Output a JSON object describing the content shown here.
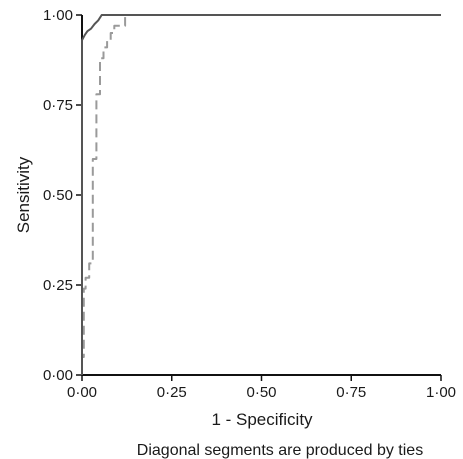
{
  "chart_data": {
    "type": "line",
    "title": "",
    "xlabel": "1 - Specificity",
    "ylabel": "Sensitivity",
    "xlim": [
      0,
      1
    ],
    "ylim": [
      0,
      1
    ],
    "x_ticks": [
      "0·00",
      "0·25",
      "0·50",
      "0·75",
      "1·00"
    ],
    "y_ticks": [
      "0·00",
      "0·25",
      "0·50",
      "0·75",
      "1·00"
    ],
    "grid": false,
    "legend": "none",
    "footnote": "Diagonal segments are produced by ties",
    "series": [
      {
        "style": "solid",
        "color": "#555555",
        "x": [
          0.0,
          0.0,
          0.008,
          0.015,
          0.025,
          0.035,
          0.045,
          0.055,
          0.07,
          1.0
        ],
        "y": [
          0.0,
          0.93,
          0.945,
          0.955,
          0.962,
          0.975,
          0.985,
          1.0,
          1.0,
          1.0
        ]
      },
      {
        "style": "dashed",
        "color": "#9a9a9a",
        "x": [
          0.0,
          0.0,
          0.005,
          0.005,
          0.01,
          0.01,
          0.02,
          0.02,
          0.03,
          0.03,
          0.04,
          0.04,
          0.05,
          0.05,
          0.06,
          0.06,
          0.07,
          0.07,
          0.08,
          0.08,
          0.09,
          0.09,
          0.12,
          0.12,
          1.0
        ],
        "y": [
          0.0,
          0.05,
          0.05,
          0.24,
          0.24,
          0.27,
          0.27,
          0.31,
          0.31,
          0.6,
          0.6,
          0.78,
          0.78,
          0.88,
          0.88,
          0.91,
          0.91,
          0.93,
          0.93,
          0.95,
          0.95,
          0.97,
          0.97,
          1.0,
          1.0
        ]
      }
    ]
  }
}
